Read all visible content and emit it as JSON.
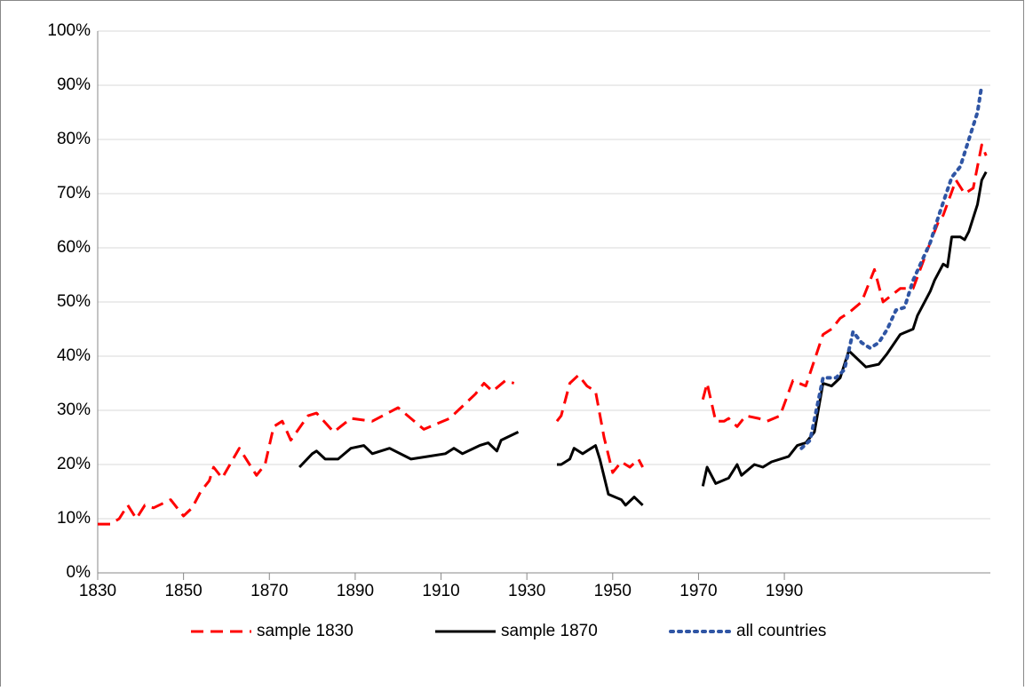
{
  "chart_data": {
    "type": "line",
    "xlim": [
      1830,
      2038
    ],
    "xticks": [
      1830,
      1850,
      1870,
      1890,
      1910,
      1930,
      1950,
      1970,
      1990
    ],
    "ylim": [
      0,
      100
    ],
    "yticks": [
      {
        "value": 0,
        "label": "0%"
      },
      {
        "value": 10,
        "label": "10%"
      },
      {
        "value": 20,
        "label": "20%"
      },
      {
        "value": 30,
        "label": "30%"
      },
      {
        "value": 40,
        "label": "40%"
      },
      {
        "value": 50,
        "label": "50%"
      },
      {
        "value": 60,
        "label": "60%"
      },
      {
        "value": 70,
        "label": "70%"
      },
      {
        "value": 80,
        "label": "80%"
      },
      {
        "value": 90,
        "label": "90%"
      },
      {
        "value": 100,
        "label": "100%"
      }
    ],
    "grid": true,
    "legend": "bottom",
    "series": [
      {
        "name": "sample 1830",
        "color": "#ff0000",
        "style": "dashed",
        "x": [
          1830,
          1833,
          1835,
          1837,
          1839,
          1841,
          1843,
          1847,
          1850,
          1852,
          1854,
          1856,
          1857,
          1859,
          1863,
          1867,
          1869,
          1871,
          1873,
          1875,
          1879,
          1881,
          1885,
          1889,
          1894,
          1900,
          1906,
          1912,
          1918,
          1920,
          1922,
          1925,
          1927,
          1932,
          1937,
          1938,
          1940,
          1942,
          1944,
          1946,
          1948,
          1950,
          1952,
          1954,
          1956,
          1957,
          1964,
          1971,
          1972,
          1974,
          1976,
          1977,
          1979,
          1981,
          1984,
          1986,
          1989,
          1992,
          1995,
          1999,
          2001,
          2003,
          2005,
          2008,
          2011,
          2013,
          2017,
          2020,
          2024,
          2026,
          2027,
          2030,
          2032,
          2034,
          2036,
          2037
        ],
        "values": [
          9,
          9,
          10,
          12.5,
          10,
          12.5,
          12,
          13.5,
          10.5,
          12,
          15,
          17,
          19.5,
          17.5,
          23,
          18,
          20,
          27,
          28,
          24.5,
          29,
          29.5,
          26,
          28.5,
          28,
          30.5,
          26.5,
          28.5,
          33,
          35,
          33.5,
          35.5,
          35,
          null,
          28,
          29,
          35,
          36.5,
          34.5,
          33.5,
          25,
          18.5,
          20.5,
          19.5,
          21,
          19.5,
          null,
          32,
          35,
          28,
          28,
          28.5,
          27,
          29,
          28.5,
          28,
          29,
          35.5,
          34.5,
          44,
          45,
          47,
          48,
          50,
          56,
          50,
          52.5,
          52.5,
          61,
          65,
          66,
          72.5,
          70,
          71,
          79,
          77
        ]
      },
      {
        "name": "sample 1870",
        "color": "#000000",
        "style": "solid",
        "x": [
          1877,
          1880,
          1881,
          1883,
          1886,
          1889,
          1892,
          1894,
          1898,
          1903,
          1907,
          1911,
          1913,
          1915,
          1919,
          1921,
          1923,
          1924,
          1928,
          1932,
          1937,
          1938,
          1940,
          1941,
          1943,
          1945,
          1946,
          1947,
          1949,
          1952,
          1953,
          1955,
          1957,
          1964,
          1971,
          1972,
          1974,
          1977,
          1979,
          1980,
          1983,
          1985,
          1987,
          1991,
          1993,
          1995,
          1997,
          1999,
          2001,
          2003,
          2005,
          2009,
          2012,
          2014,
          2017,
          2020,
          2021,
          2024,
          2025,
          2027,
          2028,
          2029,
          2031,
          2032,
          2033,
          2035,
          2036,
          2037
        ],
        "values": [
          19.5,
          22,
          22.5,
          21,
          21,
          23,
          23.5,
          22,
          23,
          21,
          21.5,
          22,
          23,
          22,
          23.5,
          24,
          22.5,
          24.5,
          26,
          null,
          20,
          20,
          21,
          23,
          22,
          23,
          23.5,
          21,
          14.5,
          13.5,
          12.5,
          14,
          12.5,
          null,
          16,
          19.5,
          16.5,
          17.5,
          20,
          18,
          20,
          19.5,
          20.5,
          21.5,
          23.5,
          24,
          26,
          35,
          34.5,
          36,
          41,
          38,
          38.5,
          40.5,
          44,
          45,
          47.5,
          52,
          54,
          57,
          56.5,
          62,
          62,
          61.5,
          63,
          68,
          72.5,
          74
        ]
      },
      {
        "name": "all countries",
        "color": "#2f55a4",
        "style": "dotted",
        "x": [
          1994,
          1996,
          1999,
          2002,
          2004,
          2006,
          2008,
          2010,
          2012,
          2014,
          2016,
          2018,
          2020,
          2024,
          2026,
          2029,
          2031,
          2033,
          2035,
          2036
        ],
        "values": [
          23,
          24.5,
          36,
          36,
          37.5,
          44.5,
          42.5,
          41.5,
          42.5,
          45,
          48.5,
          49,
          54,
          61,
          66,
          73,
          75,
          80,
          85,
          90
        ]
      }
    ]
  }
}
